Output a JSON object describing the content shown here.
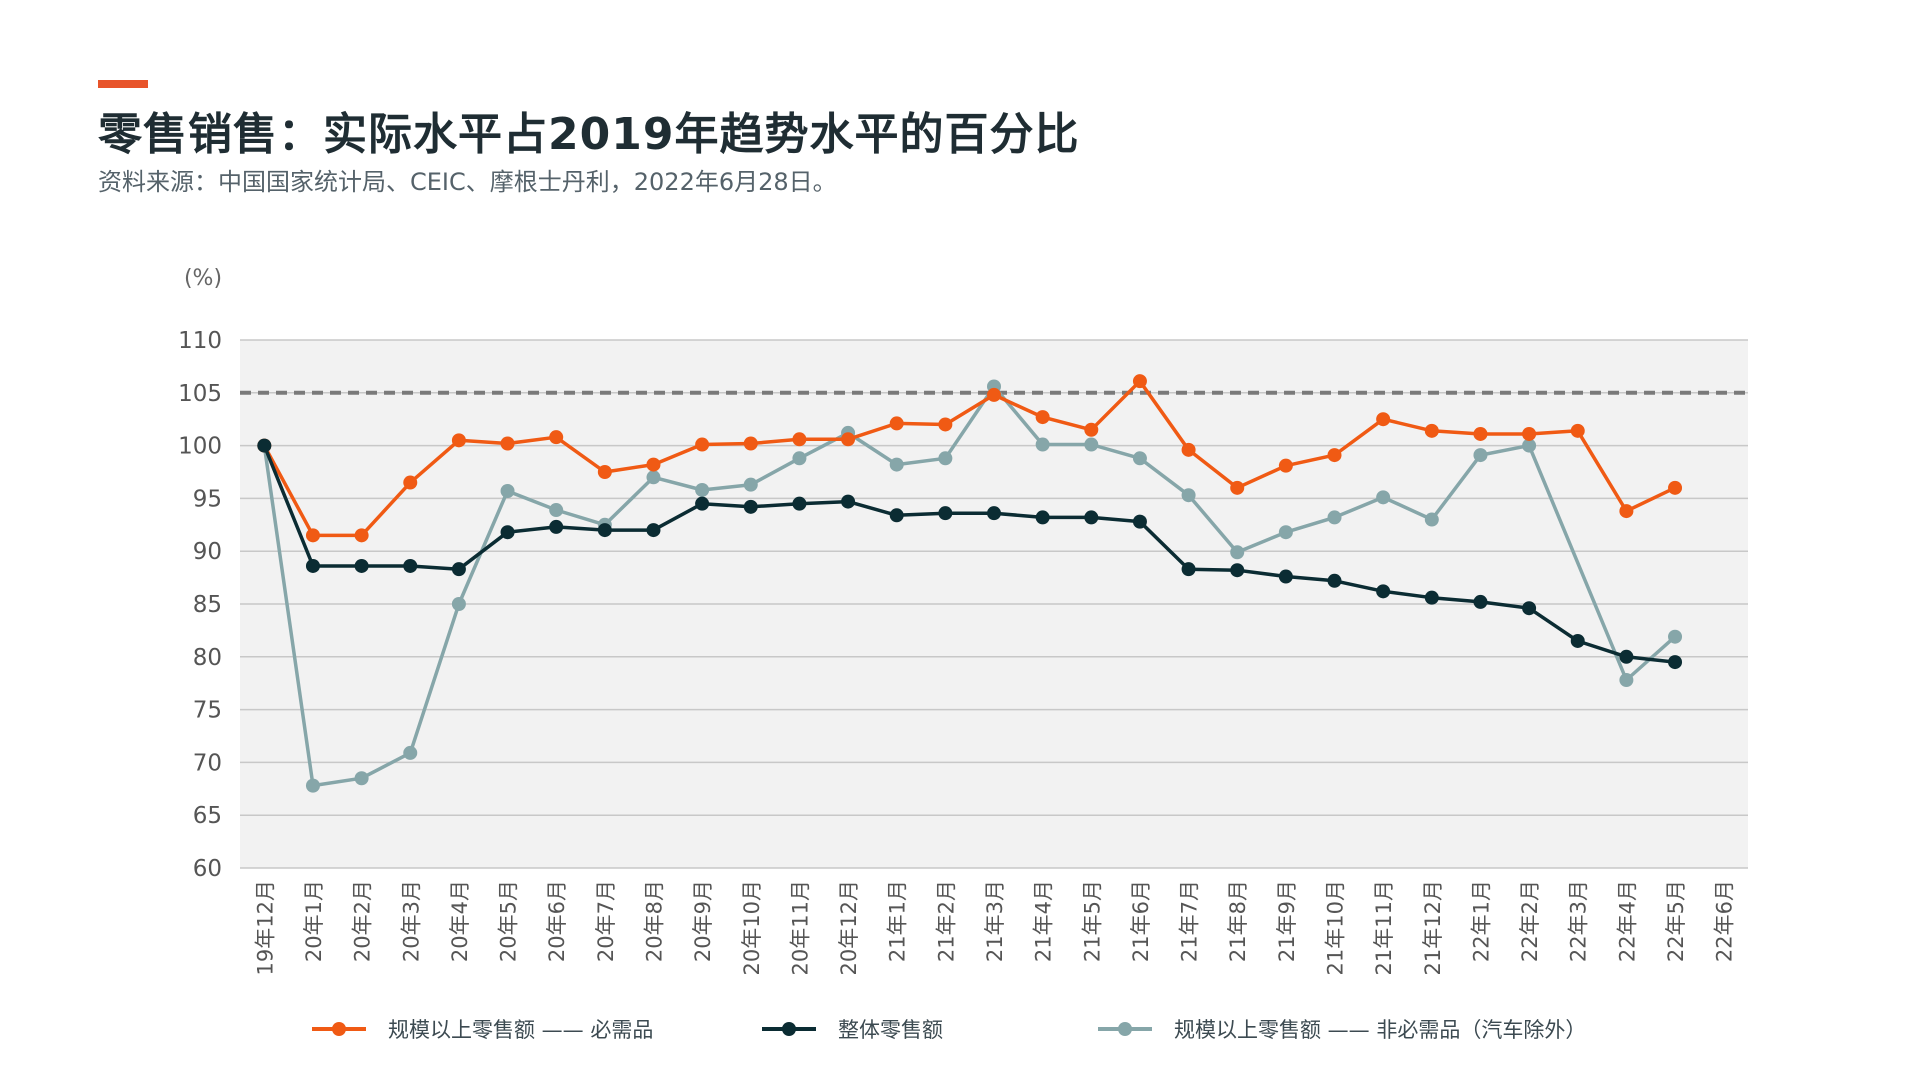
{
  "header": {
    "title": "零售销售：实际水平占2019年趋势水平的百分比",
    "subtitle": "资料来源：中国国家统计局、CEIC、摩根士丹利，2022年6月28日。"
  },
  "colors": {
    "accent": "#e8542a",
    "orange": "#f05a14",
    "dark": "#0b2c33",
    "teal": "#86a6a9",
    "plot_bg": "#f2f2f2",
    "grid": "#c8c8c8",
    "ref_line": "#7a7a7a"
  },
  "chart_data": {
    "type": "line",
    "ylabel": "(%)",
    "ylim": [
      60,
      110
    ],
    "yticks": [
      110,
      105,
      100,
      95,
      90,
      85,
      80,
      75,
      70,
      65,
      60
    ],
    "reference_line": 105,
    "grid": true,
    "legend_position": "bottom",
    "categories": [
      "19年12月",
      "20年1月",
      "20年2月",
      "20年3月",
      "20年4月",
      "20年5月",
      "20年6月",
      "20年7月",
      "20年8月",
      "20年9月",
      "20年10月",
      "20年11月",
      "20年12月",
      "21年1月",
      "21年2月",
      "21年3月",
      "21年4月",
      "21年5月",
      "21年6月",
      "21年7月",
      "21年8月",
      "21年9月",
      "21年10月",
      "21年11月",
      "21年12月",
      "22年1月",
      "22年2月",
      "22年3月",
      "22年4月",
      "22年5月",
      "22年6月"
    ],
    "series": [
      {
        "name": "规模以上零售额 —— 必需品",
        "color": "#f05a14",
        "values": [
          100,
          91.5,
          91.5,
          96.5,
          100.5,
          100.2,
          100.8,
          97.5,
          98.2,
          100.1,
          100.2,
          100.6,
          100.6,
          102.1,
          102,
          104.8,
          102.7,
          101.5,
          106.1,
          99.6,
          96,
          98.1,
          99.1,
          102.5,
          101.4,
          101.1,
          101.1,
          101.4,
          93.8,
          96,
          null
        ]
      },
      {
        "name": "整体零售额",
        "color": "#0b2c33",
        "values": [
          100,
          88.6,
          88.6,
          88.6,
          88.3,
          91.8,
          92.3,
          92,
          92,
          94.5,
          94.2,
          94.5,
          94.7,
          93.4,
          93.6,
          93.6,
          93.2,
          93.2,
          92.8,
          88.3,
          88.2,
          87.6,
          87.2,
          86.2,
          85.6,
          85.2,
          84.6,
          81.5,
          80,
          79.5,
          null
        ]
      },
      {
        "name": "规模以上零售额 —— 非必需品（汽车除外）",
        "color": "#86a6a9",
        "values": [
          100,
          67.8,
          68.5,
          70.9,
          85,
          95.7,
          93.9,
          92.5,
          97,
          95.8,
          96.3,
          98.8,
          101.2,
          98.2,
          98.8,
          105.6,
          100.1,
          100.1,
          98.8,
          95.3,
          89.9,
          91.8,
          93.2,
          95.1,
          93,
          99.1,
          100,
          null,
          77.8,
          81.9,
          null
        ]
      }
    ]
  }
}
